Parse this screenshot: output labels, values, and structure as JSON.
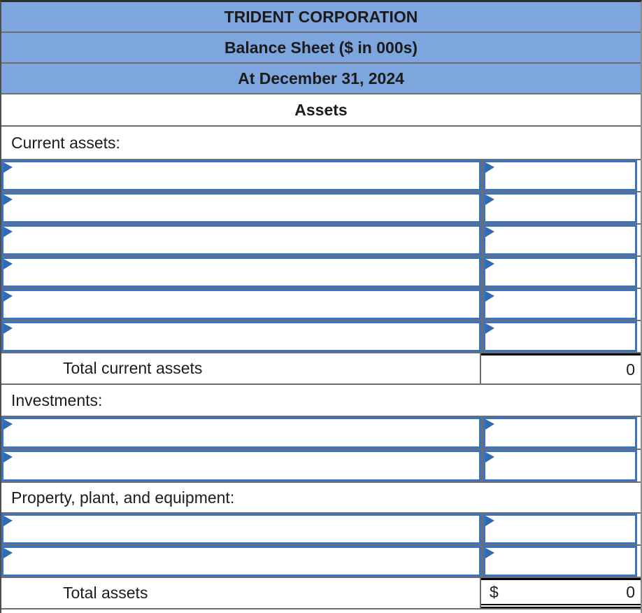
{
  "title_block": {
    "company": "TRIDENT CORPORATION",
    "statement": "Balance Sheet ($ in 000s)",
    "date": "At December 31, 2024"
  },
  "assets_header": "Assets",
  "sections": {
    "current_assets_label": "Current assets:",
    "investments_label": "Investments:",
    "ppe_label": "Property, plant, and equipment:"
  },
  "totals": {
    "total_current_assets_label": "Total current assets",
    "total_current_assets_value": "0",
    "total_assets_label": "Total assets",
    "total_assets_currency": "$",
    "total_assets_value": "0"
  },
  "input_rows": {
    "current_assets": 6,
    "investments": 2,
    "ppe": 2
  },
  "icons": {
    "cell_marker": "dropdown-flag"
  },
  "colors": {
    "header_bg": "#7CA6DD",
    "cell_border_blue": "#3B72C1",
    "flag_blue": "#2E6CB5",
    "grid_gray": "#6E6E6E",
    "total_rule_black": "#000000"
  }
}
